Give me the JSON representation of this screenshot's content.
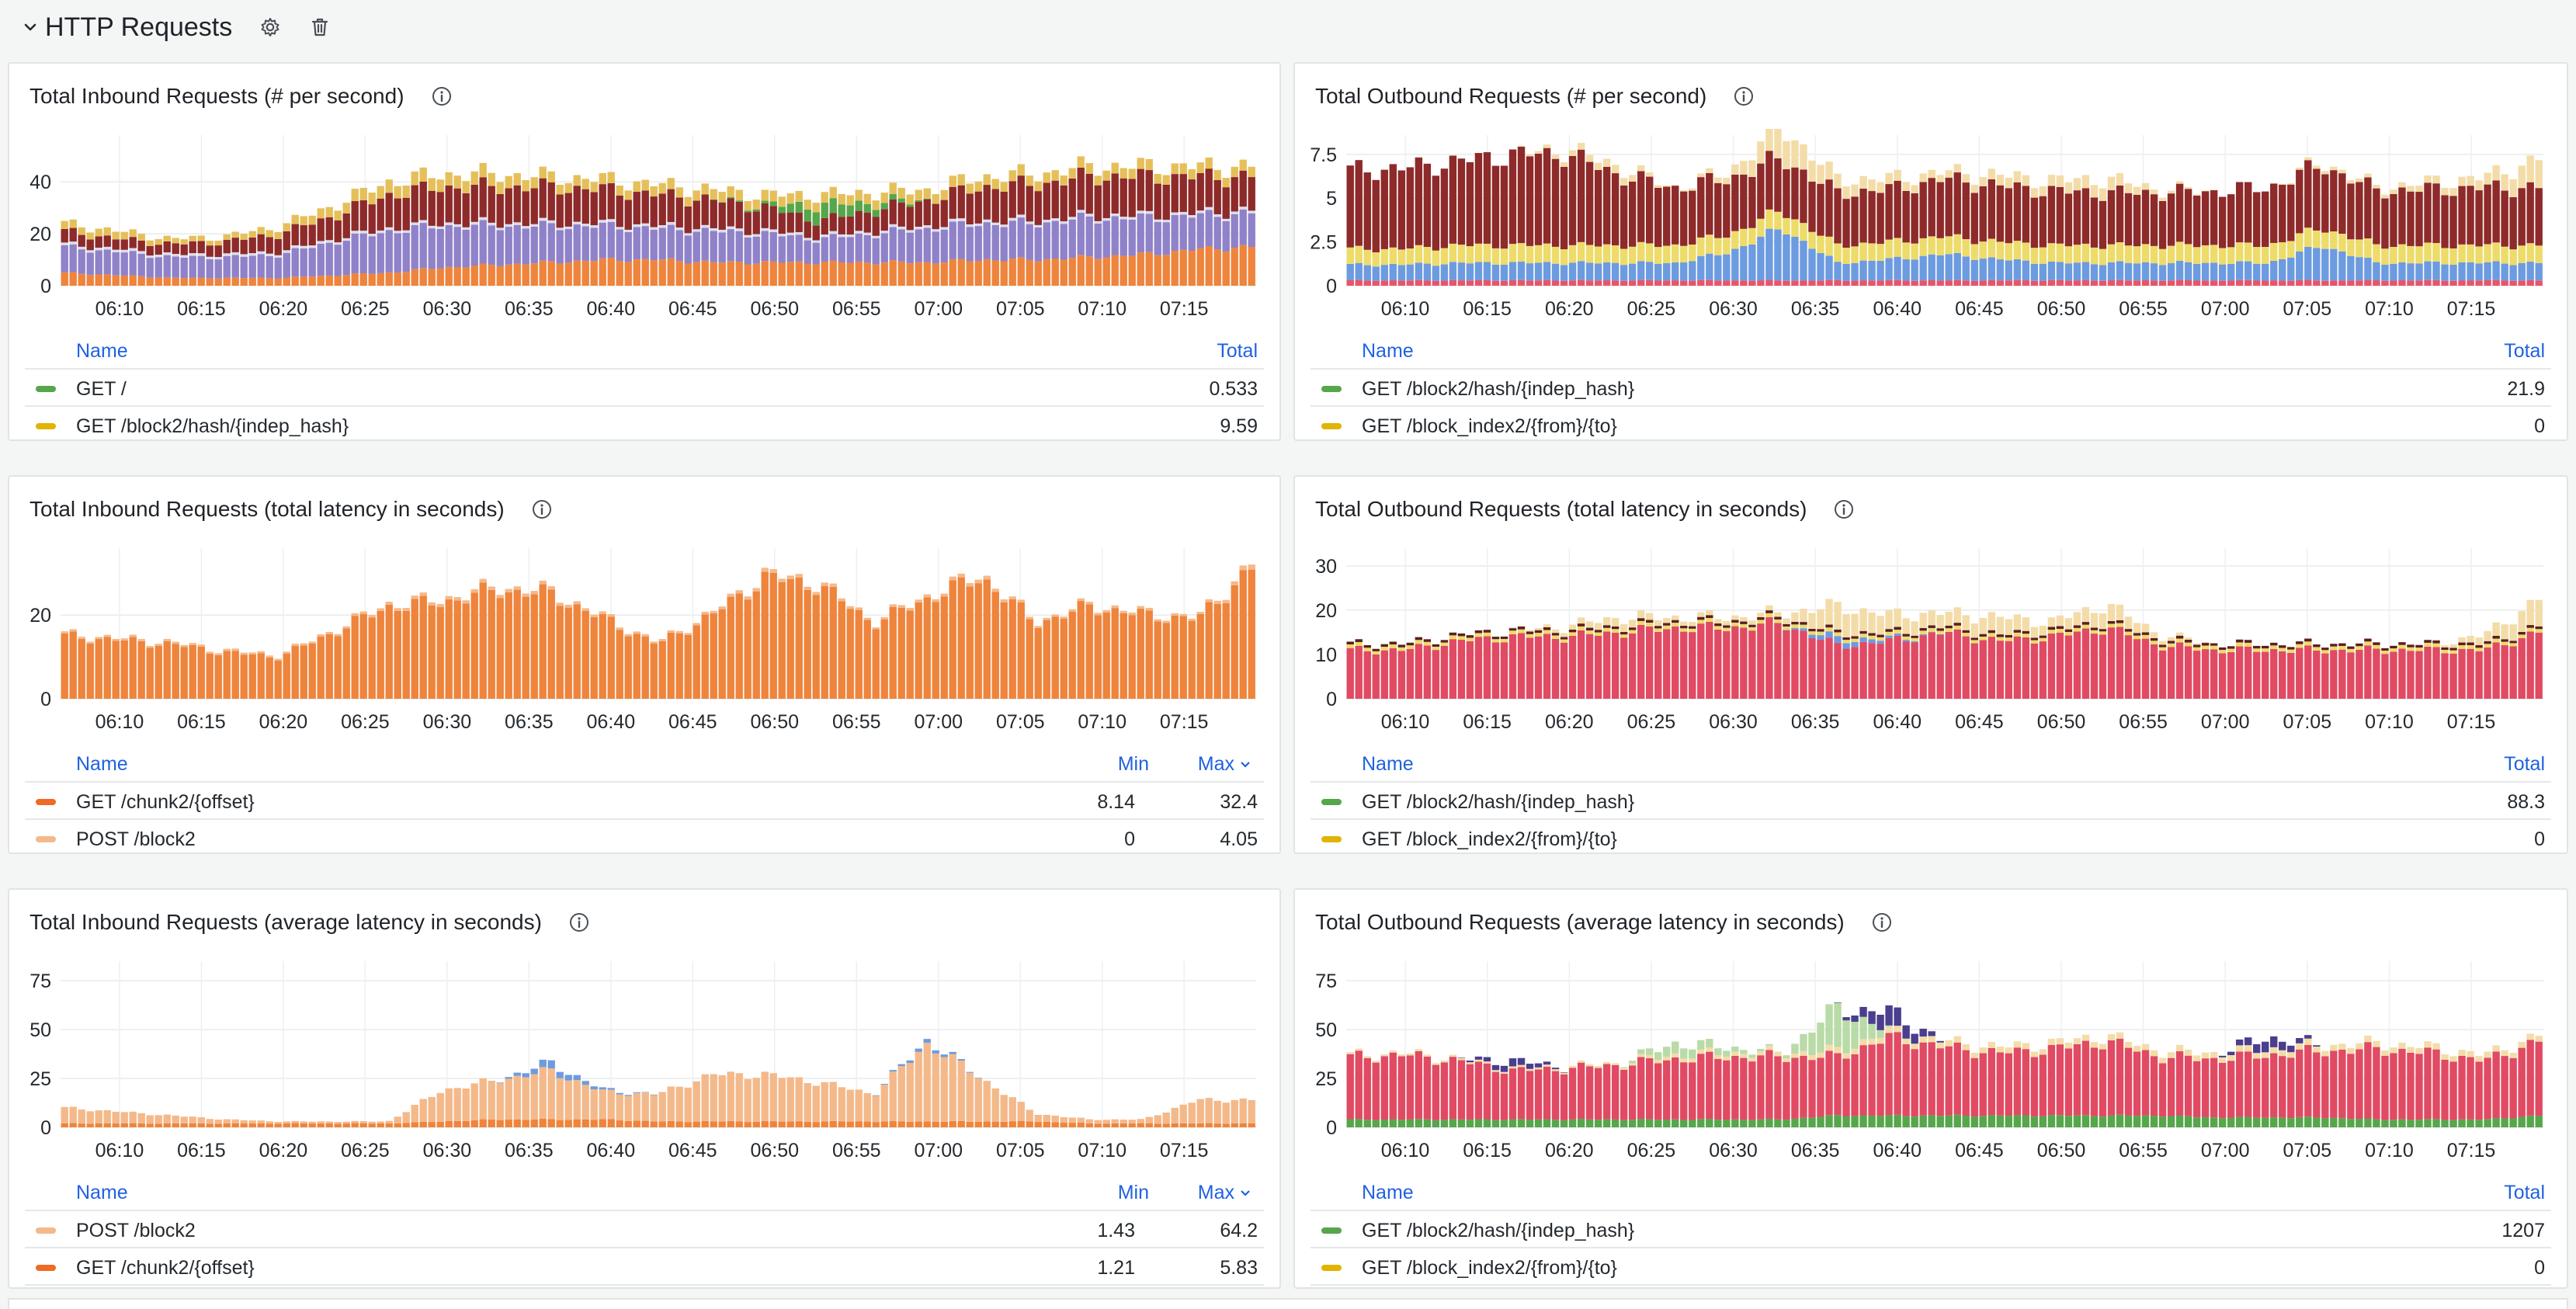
{
  "row": {
    "title": "HTTP Requests",
    "icons": [
      "chevron-down-icon",
      "gear-icon",
      "trash-icon"
    ]
  },
  "time_ticks": [
    "06:10",
    "06:15",
    "06:20",
    "06:25",
    "06:30",
    "06:35",
    "06:40",
    "06:45",
    "06:50",
    "06:55",
    "07:00",
    "07:05",
    "07:10",
    "07:15"
  ],
  "panels": [
    {
      "id": "in-rate",
      "title": "Total Inbound Requests (# per second)",
      "legend": {
        "name_header": "Name",
        "cols": [
          "Total"
        ],
        "sort_col": -1,
        "rows": [
          {
            "name": "GET /",
            "color": "#56a64b",
            "values": [
              "0.533"
            ]
          },
          {
            "name": "GET /block2/hash/{indep_hash}",
            "color": "#e0b400",
            "values": [
              "9.59"
            ]
          }
        ]
      },
      "chart_data": {
        "type": "area",
        "stacked": true,
        "y_ticks": [
          "0",
          "20",
          "40"
        ],
        "ylim": [
          0,
          58
        ],
        "x_range": [
          "06:06",
          "07:20"
        ],
        "grid": true,
        "series": [
          {
            "color": "#ef843c",
            "anchors": [
              5,
              4,
              3,
              3,
              3,
              4,
              5,
              7,
              8,
              9,
              10,
              10,
              9,
              9,
              9,
              9,
              9,
              10,
              10,
              11,
              12,
              14,
              15
            ]
          },
          {
            "color": "#8f82c9",
            "anchors": [
              10,
              9,
              8,
              8,
              9,
              13,
              16,
              16,
              15,
              14,
              13,
              12,
              12,
              11,
              9,
              11,
              13,
              14,
              14,
              15,
              14,
              13,
              13
            ]
          },
          {
            "color": "#dcdcea",
            "anchors": [
              1,
              1,
              1,
              1,
              1,
              1,
              1,
              1,
              1,
              1,
              1,
              1,
              1,
              1,
              1,
              1,
              1,
              1,
              1,
              1,
              1,
              1,
              1
            ]
          },
          {
            "color": "#8e2a2a",
            "anchors": [
              5,
              4,
              4,
              5,
              7,
              9,
              13,
              14,
              14,
              14,
              13,
              12,
              11,
              9,
              6,
              8,
              10,
              13,
              14,
              15,
              15,
              14,
              13
            ]
          },
          {
            "color": "#56a64b",
            "anchors": [
              0,
              0,
              0,
              0,
              0,
              0,
              0,
              0,
              0,
              0,
              0,
              0,
              0,
              1,
              6,
              3,
              0,
              0,
              0,
              0,
              0,
              0,
              0
            ]
          },
          {
            "color": "#e5c05a",
            "anchors": [
              3,
              3,
              2,
              2,
              3,
              4,
              5,
              5,
              5,
              4,
              4,
              4,
              4,
              4,
              4,
              4,
              4,
              4,
              4,
              4,
              4,
              4,
              4
            ]
          }
        ]
      }
    },
    {
      "id": "out-rate",
      "title": "Total Outbound Requests (# per second)",
      "legend": {
        "name_header": "Name",
        "cols": [
          "Total"
        ],
        "sort_col": -1,
        "rows": [
          {
            "name": "GET /block2/hash/{indep_hash}",
            "color": "#56a64b",
            "values": [
              "21.9"
            ]
          },
          {
            "name": "GET /block_index2/{from}/{to}",
            "color": "#e0b400",
            "values": [
              "0"
            ]
          }
        ]
      },
      "chart_data": {
        "type": "bar",
        "stacked": true,
        "y_ticks": [
          "0",
          "2.5",
          "5",
          "7.5"
        ],
        "ylim": [
          0,
          8.6
        ],
        "x_range": [
          "06:06",
          "07:20"
        ],
        "grid": true,
        "series": [
          {
            "color": "#e8546a",
            "anchors": [
              0.3,
              0.3,
              0.3,
              0.3,
              0.3,
              0.3,
              0.3,
              0.3,
              0.3,
              0.3,
              0.3,
              0.3,
              0.3,
              0.3,
              0.3,
              0.3,
              0.3,
              0.3,
              0.3,
              0.3,
              0.3,
              0.3,
              0.3
            ]
          },
          {
            "color": "#6d9be0",
            "anchors": [
              0.9,
              0.9,
              1,
              1,
              1,
              1,
              1,
              1.6,
              3,
              1,
              1.2,
              1.5,
              1.2,
              1,
              1,
              1,
              1,
              1,
              2,
              1,
              1,
              1,
              1
            ]
          },
          {
            "color": "#eddb6a",
            "anchors": [
              0.9,
              0.9,
              1,
              1,
              1,
              1,
              1,
              1,
              1,
              1,
              1,
              1,
              1,
              1,
              1,
              1,
              1,
              1,
              1,
              1,
              1,
              1,
              1
            ]
          },
          {
            "color": "#8e2a2a",
            "anchors": [
              4.5,
              4.6,
              4.8,
              5.2,
              5.2,
              4,
              3.3,
              3.2,
              3,
              3,
              3,
              3.3,
              3.2,
              3.1,
              3,
              3,
              3.1,
              3.3,
              3.6,
              3.1,
              3.2,
              3.3,
              3.3
            ]
          },
          {
            "color": "#f3dca8",
            "anchors": [
              0,
              0,
              0,
              0,
              0.3,
              0.5,
              0,
              0.4,
              1.8,
              0.8,
              0.6,
              0.4,
              0.6,
              0.6,
              0.8,
              0.2,
              0,
              0,
              0.2,
              0.2,
              0.4,
              0.6,
              1.6
            ]
          }
        ]
      }
    },
    {
      "id": "in-total-lat",
      "title": "Total Inbound Requests (total latency in seconds)",
      "legend": {
        "name_header": "Name",
        "cols": [
          "Min",
          "Max"
        ],
        "sort_col": 1,
        "rows": [
          {
            "name": "GET /chunk2/{offset}",
            "color": "#ef6a24",
            "values": [
              "8.14",
              "32.4"
            ]
          },
          {
            "name": "POST /block2",
            "color": "#f4b98a",
            "values": [
              "0",
              "4.05"
            ]
          }
        ]
      },
      "chart_data": {
        "type": "bar",
        "stacked": true,
        "y_ticks": [
          "0",
          "20"
        ],
        "ylim": [
          0,
          36
        ],
        "x_range": [
          "06:06",
          "07:20"
        ],
        "grid": true,
        "series": [
          {
            "color": "#ef843c",
            "anchors": [
              15,
              14,
              13,
              11,
              10,
              16,
              22,
              23,
              26,
              25,
              19,
              13,
              20,
              29,
              27,
              18,
              24,
              29,
              18,
              22,
              20,
              19,
              31
            ]
          },
          {
            "color": "#f4b98a",
            "anchors": [
              0.5,
              0.5,
              0.5,
              0.5,
              0.5,
              0.5,
              0.7,
              0.8,
              0.8,
              0.8,
              0.6,
              0.5,
              0.6,
              0.9,
              0.8,
              0.5,
              0.7,
              0.9,
              0.5,
              0.6,
              0.6,
              0.5,
              1.2
            ]
          }
        ]
      }
    },
    {
      "id": "out-total-lat",
      "title": "Total Outbound Requests (total latency in seconds)",
      "legend": {
        "name_header": "Name",
        "cols": [
          "Total"
        ],
        "sort_col": -1,
        "rows": [
          {
            "name": "GET /block2/hash/{indep_hash}",
            "color": "#56a64b",
            "values": [
              "88.3"
            ]
          },
          {
            "name": "GET /block_index2/{from}/{to}",
            "color": "#e0b400",
            "values": [
              "0"
            ]
          }
        ]
      },
      "chart_data": {
        "type": "bar",
        "stacked": true,
        "y_ticks": [
          "0",
          "10",
          "20",
          "30"
        ],
        "ylim": [
          0,
          34
        ],
        "x_range": [
          "06:06",
          "07:20"
        ],
        "grid": true,
        "series": [
          {
            "color": "#e14a63",
            "anchors": [
              11,
              11,
              13,
              14,
              14,
              15,
              16,
              16,
              17,
              12,
              13,
              15,
              13,
              14,
              16,
              12,
              11,
              11,
              11,
              11,
              11,
              11,
              15
            ]
          },
          {
            "color": "#6d9be0",
            "anchors": [
              0,
              0,
              0,
              0,
              0,
              0,
              0,
              0,
              0,
              1.5,
              0.5,
              0,
              0,
              0,
              0,
              0,
              0,
              0,
              0,
              0,
              0,
              0,
              0
            ]
          },
          {
            "color": "#eddb6a",
            "anchors": [
              0.8,
              0.8,
              0.8,
              0.8,
              0.8,
              0.8,
              0.8,
              0.8,
              0.8,
              0.8,
              0.8,
              0.8,
              0.8,
              0.8,
              0.8,
              0.8,
              0.8,
              0.8,
              0.8,
              0.8,
              0.8,
              0.8,
              0.8
            ]
          },
          {
            "color": "#5c1f1f",
            "anchors": [
              0.6,
              0.6,
              0.6,
              0.6,
              0.6,
              0.6,
              0.6,
              0.6,
              0.6,
              0.6,
              0.6,
              0.6,
              0.6,
              0.6,
              0.6,
              0.6,
              0.6,
              0.6,
              0.6,
              0.6,
              0.6,
              0.6,
              0.6
            ]
          },
          {
            "color": "#f3dca8",
            "anchors": [
              0,
              0,
              0,
              0,
              1,
              2,
              1,
              1,
              1,
              6,
              4,
              3,
              4,
              2,
              4,
              1,
              0,
              0,
              0,
              0,
              0,
              2,
              6
            ]
          }
        ]
      }
    },
    {
      "id": "in-avg-lat",
      "title": "Total Inbound Requests (average latency in seconds)",
      "legend": {
        "name_header": "Name",
        "cols": [
          "Min",
          "Max"
        ],
        "sort_col": 1,
        "rows": [
          {
            "name": "POST /block2",
            "color": "#f4b98a",
            "values": [
              "1.43",
              "64.2"
            ]
          },
          {
            "name": "GET /chunk2/{offset}",
            "color": "#ef6a24",
            "values": [
              "1.21",
              "5.83"
            ]
          }
        ]
      },
      "chart_data": {
        "type": "bar",
        "stacked": true,
        "y_ticks": [
          "0",
          "25",
          "50",
          "75"
        ],
        "ylim": [
          0,
          85
        ],
        "x_range": [
          "06:06",
          "07:20"
        ],
        "grid": true,
        "series": [
          {
            "color": "#ef843c",
            "anchors": [
              2,
              2,
              2,
              2,
              2,
              2,
              2,
              3,
              4,
              4,
              4,
              3,
              3,
              3,
              3,
              3,
              3,
              3,
              3,
              2,
              2,
              2,
              2
            ]
          },
          {
            "color": "#f4b98a",
            "anchors": [
              8,
              6,
              4,
              2,
              1,
              1,
              1,
              16,
              20,
              25,
              14,
              14,
              24,
              24,
              20,
              14,
              40,
              22,
              4,
              2,
              2,
              12,
              12
            ]
          },
          {
            "color": "#6d9be0",
            "anchors": [
              0,
              0,
              0,
              0,
              0,
              0,
              0,
              0,
              0,
              4,
              1,
              0,
              0,
              0,
              0,
              0,
              2,
              0,
              0,
              0,
              0,
              0,
              0
            ]
          }
        ]
      }
    },
    {
      "id": "out-avg-lat",
      "title": "Total Outbound Requests (average latency in seconds)",
      "legend": {
        "name_header": "Name",
        "cols": [
          "Total"
        ],
        "sort_col": -1,
        "rows": [
          {
            "name": "GET /block2/hash/{indep_hash}",
            "color": "#56a64b",
            "values": [
              "1207"
            ]
          },
          {
            "name": "GET /block_index2/{from}/{to}",
            "color": "#e0b400",
            "values": [
              "0"
            ]
          }
        ]
      },
      "chart_data": {
        "type": "bar",
        "stacked": true,
        "y_ticks": [
          "0",
          "25",
          "50",
          "75"
        ],
        "ylim": [
          0,
          85
        ],
        "x_range": [
          "06:06",
          "07:20"
        ],
        "grid": true,
        "series": [
          {
            "color": "#56a64b",
            "anchors": [
              4,
              4,
              4,
              4,
              4,
              4,
              4,
              4,
              4,
              6,
              6,
              6,
              6,
              6,
              6,
              6,
              5,
              5,
              5,
              4,
              4,
              4,
              6
            ]
          },
          {
            "color": "#e14a63",
            "anchors": [
              32,
              33,
              30,
              25,
              26,
              28,
              31,
              32,
              32,
              30,
              40,
              35,
              32,
              34,
              38,
              30,
              30,
              32,
              34,
              36,
              34,
              30,
              38
            ]
          },
          {
            "color": "#f3dca8",
            "anchors": [
              1,
              1,
              1,
              1,
              1,
              1,
              2,
              2,
              2,
              3,
              3,
              3,
              3,
              3,
              3,
              3,
              3,
              3,
              3,
              3,
              3,
              3,
              3
            ]
          },
          {
            "color": "#b9dba7",
            "anchors": [
              0,
              0,
              0,
              0,
              0,
              0,
              6,
              3,
              0,
              22,
              0,
              0,
              0,
              0,
              0,
              0,
              0,
              0,
              0,
              0,
              0,
              0,
              0
            ]
          },
          {
            "color": "#4a3e8e",
            "anchors": [
              0,
              0,
              0,
              4,
              0,
              0,
              0,
              0,
              0,
              0,
              10,
              0,
              0,
              0,
              0,
              0,
              0,
              6,
              0,
              0,
              0,
              0,
              0
            ]
          }
        ]
      }
    }
  ]
}
